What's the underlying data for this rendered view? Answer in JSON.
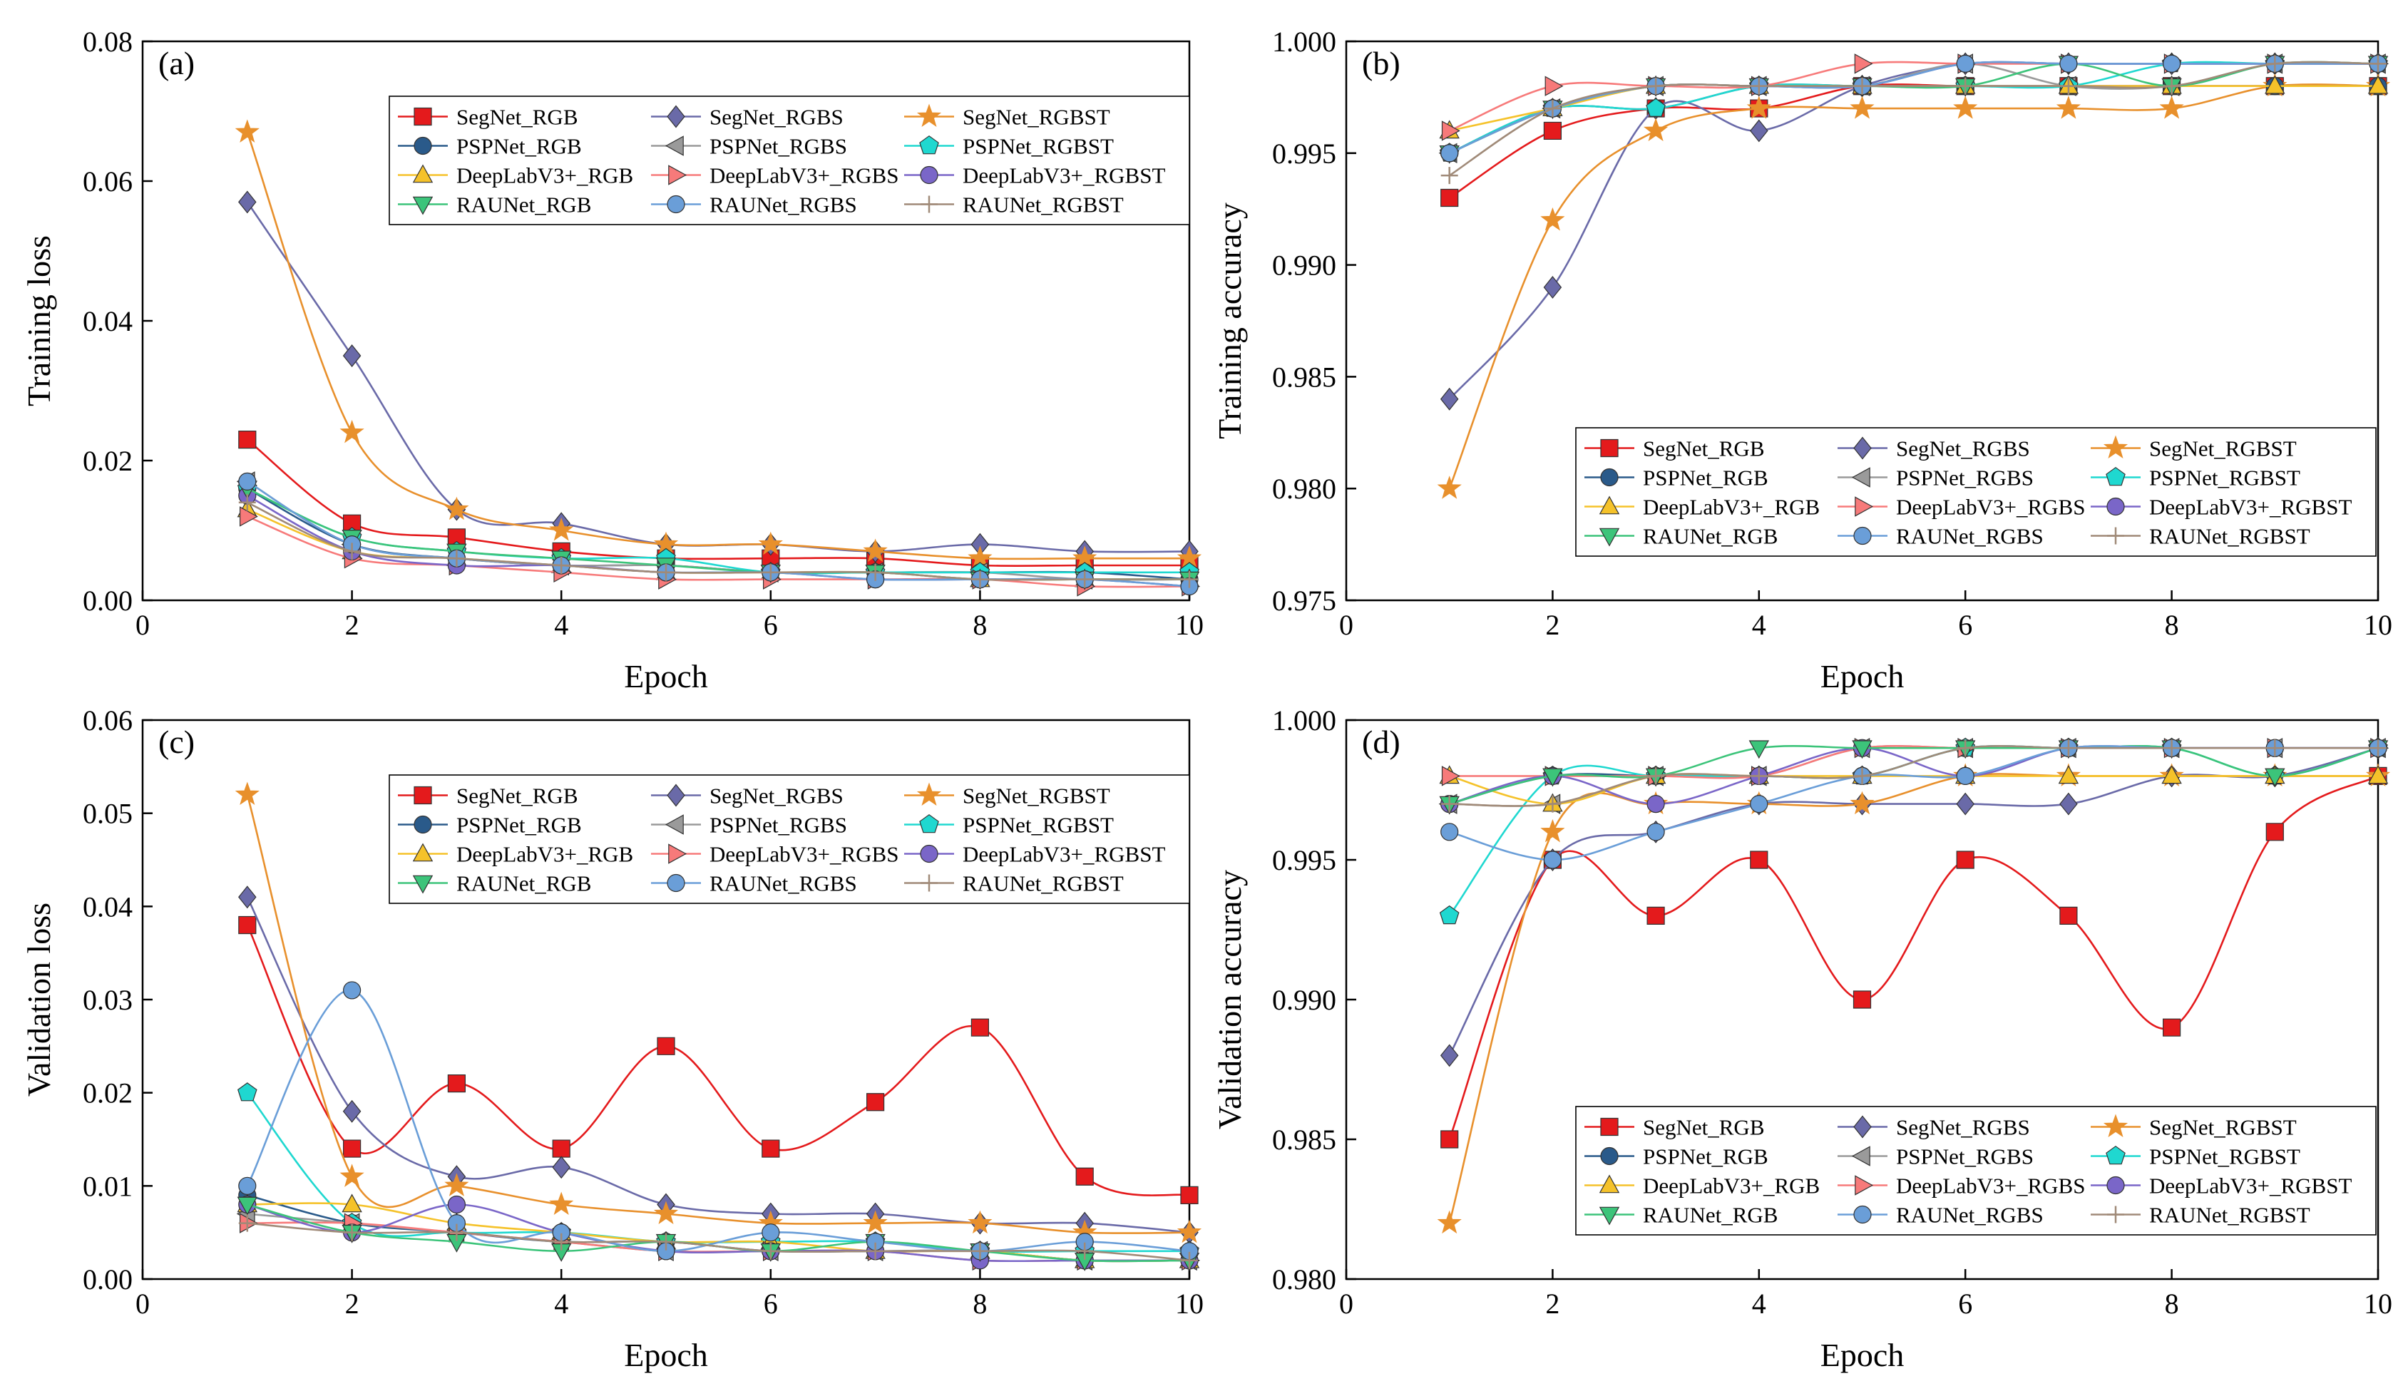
{
  "series_meta": [
    {
      "name": "SegNet_RGB",
      "color": "#e41a1c",
      "marker": "square"
    },
    {
      "name": "SegNet_RGBS",
      "color": "#6a6aa8",
      "marker": "diamond"
    },
    {
      "name": "SegNet_RGBST",
      "color": "#e8902c",
      "marker": "star"
    },
    {
      "name": "PSPNet_RGB",
      "color": "#2a5a8a",
      "marker": "circle"
    },
    {
      "name": "PSPNet_RGBS",
      "color": "#9a9a9a",
      "marker": "triangle-left"
    },
    {
      "name": "PSPNet_RGBST",
      "color": "#1fd8d0",
      "marker": "pentagon"
    },
    {
      "name": "DeepLabV3+_RGB",
      "color": "#f5c22a",
      "marker": "triangle-up"
    },
    {
      "name": "DeepLabV3+_RGBS",
      "color": "#f77a7a",
      "marker": "triangle-right"
    },
    {
      "name": "DeepLabV3+_RGBST",
      "color": "#7a66c8",
      "marker": "circle"
    },
    {
      "name": "RAUNet_RGB",
      "color": "#3cc47a",
      "marker": "triangle-down"
    },
    {
      "name": "RAUNet_RGBS",
      "color": "#6a9ed8",
      "marker": "circle"
    },
    {
      "name": "RAUNet_RGBST",
      "color": "#a08a78",
      "marker": "plus"
    }
  ],
  "chart_data": [
    {
      "type": "line",
      "panel_label": "(a)",
      "xlabel": "Epoch",
      "ylabel": "Training loss",
      "xlim": [
        0,
        10
      ],
      "ylim": [
        0,
        0.08
      ],
      "x_ticks": [
        "0",
        "2",
        "4",
        "6",
        "8",
        "10"
      ],
      "y_ticks": [
        "0.00",
        "0.02",
        "0.04",
        "0.06",
        "0.08"
      ],
      "legend_position": "top-right",
      "x": [
        1,
        2,
        3,
        4,
        5,
        6,
        7,
        8,
        9,
        10
      ],
      "series": [
        {
          "name": "SegNet_RGB",
          "values": [
            0.023,
            0.011,
            0.009,
            0.007,
            0.006,
            0.006,
            0.006,
            0.005,
            0.005,
            0.005
          ]
        },
        {
          "name": "SegNet_RGBS",
          "values": [
            0.057,
            0.035,
            0.013,
            0.011,
            0.008,
            0.008,
            0.007,
            0.008,
            0.007,
            0.007
          ]
        },
        {
          "name": "SegNet_RGBST",
          "values": [
            0.067,
            0.024,
            0.013,
            0.01,
            0.008,
            0.008,
            0.007,
            0.006,
            0.006,
            0.006
          ]
        },
        {
          "name": "PSPNet_RGB",
          "values": [
            0.016,
            0.008,
            0.006,
            0.005,
            0.005,
            0.004,
            0.004,
            0.004,
            0.004,
            0.003
          ]
        },
        {
          "name": "PSPNet_RGBS",
          "values": [
            0.017,
            0.008,
            0.006,
            0.005,
            0.005,
            0.004,
            0.004,
            0.004,
            0.003,
            0.003
          ]
        },
        {
          "name": "PSPNet_RGBST",
          "values": [
            0.016,
            0.009,
            0.007,
            0.006,
            0.006,
            0.004,
            0.004,
            0.004,
            0.004,
            0.004
          ]
        },
        {
          "name": "DeepLabV3+_RGB",
          "values": [
            0.013,
            0.007,
            0.006,
            0.005,
            0.004,
            0.004,
            0.004,
            0.003,
            0.003,
            0.003
          ]
        },
        {
          "name": "DeepLabV3+_RGBS",
          "values": [
            0.012,
            0.006,
            0.005,
            0.004,
            0.003,
            0.003,
            0.003,
            0.003,
            0.002,
            0.002
          ]
        },
        {
          "name": "DeepLabV3+_RGBST",
          "values": [
            0.015,
            0.007,
            0.005,
            0.005,
            0.004,
            0.004,
            0.003,
            0.003,
            0.003,
            0.002
          ]
        },
        {
          "name": "RAUNet_RGB",
          "values": [
            0.016,
            0.009,
            0.007,
            0.006,
            0.005,
            0.004,
            0.004,
            0.003,
            0.003,
            0.003
          ]
        },
        {
          "name": "RAUNet_RGBS",
          "values": [
            0.017,
            0.008,
            0.006,
            0.005,
            0.004,
            0.004,
            0.003,
            0.003,
            0.003,
            0.002
          ]
        },
        {
          "name": "RAUNet_RGBST",
          "values": [
            0.014,
            0.007,
            0.006,
            0.005,
            0.004,
            0.004,
            0.004,
            0.003,
            0.003,
            0.003
          ]
        }
      ]
    },
    {
      "type": "line",
      "panel_label": "(b)",
      "xlabel": "Epoch",
      "ylabel": "Training accuracy",
      "xlim": [
        0,
        10
      ],
      "ylim": [
        0.975,
        1.0
      ],
      "x_ticks": [
        "0",
        "2",
        "4",
        "6",
        "8",
        "10"
      ],
      "y_ticks": [
        "0.975",
        "0.980",
        "0.985",
        "0.990",
        "0.995",
        "1.000"
      ],
      "legend_position": "bottom-right",
      "x": [
        1,
        2,
        3,
        4,
        5,
        6,
        7,
        8,
        9,
        10
      ],
      "series": [
        {
          "name": "SegNet_RGB",
          "values": [
            0.993,
            0.996,
            0.997,
            0.997,
            0.998,
            0.998,
            0.998,
            0.998,
            0.998,
            0.998
          ]
        },
        {
          "name": "SegNet_RGBS",
          "values": [
            0.984,
            0.989,
            0.997,
            0.996,
            0.998,
            0.999,
            0.999,
            0.999,
            0.999,
            0.999
          ]
        },
        {
          "name": "SegNet_RGBST",
          "values": [
            0.98,
            0.992,
            0.996,
            0.997,
            0.997,
            0.997,
            0.997,
            0.997,
            0.998,
            0.998
          ]
        },
        {
          "name": "PSPNet_RGB",
          "values": [
            0.995,
            0.997,
            0.997,
            0.998,
            0.998,
            0.998,
            0.998,
            0.998,
            0.998,
            0.998
          ]
        },
        {
          "name": "PSPNet_RGBS",
          "values": [
            0.995,
            0.997,
            0.998,
            0.998,
            0.998,
            0.999,
            0.998,
            0.998,
            0.999,
            0.999
          ]
        },
        {
          "name": "PSPNet_RGBST",
          "values": [
            0.995,
            0.997,
            0.997,
            0.998,
            0.998,
            0.998,
            0.998,
            0.999,
            0.999,
            0.999
          ]
        },
        {
          "name": "DeepLabV3+_RGB",
          "values": [
            0.996,
            0.997,
            0.998,
            0.998,
            0.998,
            0.998,
            0.998,
            0.998,
            0.998,
            0.998
          ]
        },
        {
          "name": "DeepLabV3+_RGBS",
          "values": [
            0.996,
            0.998,
            0.998,
            0.998,
            0.999,
            0.999,
            0.999,
            0.999,
            0.999,
            0.999
          ]
        },
        {
          "name": "DeepLabV3+_RGBST",
          "values": [
            0.995,
            0.997,
            0.998,
            0.998,
            0.998,
            0.999,
            0.999,
            0.999,
            0.999,
            0.999
          ]
        },
        {
          "name": "RAUNet_RGB",
          "values": [
            0.995,
            0.997,
            0.998,
            0.998,
            0.998,
            0.998,
            0.999,
            0.998,
            0.999,
            0.999
          ]
        },
        {
          "name": "RAUNet_RGBS",
          "values": [
            0.995,
            0.997,
            0.998,
            0.998,
            0.998,
            0.999,
            0.999,
            0.999,
            0.999,
            0.999
          ]
        },
        {
          "name": "RAUNet_RGBST",
          "values": [
            0.994,
            0.997,
            0.998,
            0.998,
            0.998,
            0.998,
            0.998,
            0.998,
            0.999,
            0.999
          ]
        }
      ]
    },
    {
      "type": "line",
      "panel_label": "(c)",
      "xlabel": "Epoch",
      "ylabel": "Validation loss",
      "xlim": [
        0,
        10
      ],
      "ylim": [
        0,
        0.06
      ],
      "x_ticks": [
        "0",
        "2",
        "4",
        "6",
        "8",
        "10"
      ],
      "y_ticks": [
        "0.00",
        "0.01",
        "0.02",
        "0.03",
        "0.04",
        "0.05",
        "0.06"
      ],
      "legend_position": "top-right",
      "x": [
        1,
        2,
        3,
        4,
        5,
        6,
        7,
        8,
        9,
        10
      ],
      "series": [
        {
          "name": "SegNet_RGB",
          "values": [
            0.038,
            0.014,
            0.021,
            0.014,
            0.025,
            0.014,
            0.019,
            0.027,
            0.011,
            0.009
          ]
        },
        {
          "name": "SegNet_RGBS",
          "values": [
            0.041,
            0.018,
            0.011,
            0.012,
            0.008,
            0.007,
            0.007,
            0.006,
            0.006,
            0.005
          ]
        },
        {
          "name": "SegNet_RGBST",
          "values": [
            0.052,
            0.011,
            0.01,
            0.008,
            0.007,
            0.006,
            0.006,
            0.006,
            0.005,
            0.005
          ]
        },
        {
          "name": "PSPNet_RGB",
          "values": [
            0.009,
            0.006,
            0.005,
            0.004,
            0.004,
            0.003,
            0.003,
            0.003,
            0.002,
            0.002
          ]
        },
        {
          "name": "PSPNet_RGBS",
          "values": [
            0.007,
            0.006,
            0.005,
            0.004,
            0.003,
            0.003,
            0.003,
            0.003,
            0.002,
            0.002
          ]
        },
        {
          "name": "PSPNet_RGBST",
          "values": [
            0.02,
            0.006,
            0.005,
            0.005,
            0.004,
            0.004,
            0.004,
            0.003,
            0.003,
            0.003
          ]
        },
        {
          "name": "DeepLabV3+_RGB",
          "values": [
            0.008,
            0.008,
            0.006,
            0.005,
            0.004,
            0.004,
            0.003,
            0.003,
            0.002,
            0.002
          ]
        },
        {
          "name": "DeepLabV3+_RGBS",
          "values": [
            0.006,
            0.006,
            0.005,
            0.004,
            0.003,
            0.003,
            0.003,
            0.002,
            0.002,
            0.002
          ]
        },
        {
          "name": "DeepLabV3+_RGBST",
          "values": [
            0.008,
            0.005,
            0.008,
            0.005,
            0.003,
            0.003,
            0.003,
            0.002,
            0.002,
            0.002
          ]
        },
        {
          "name": "RAUNet_RGB",
          "values": [
            0.008,
            0.005,
            0.004,
            0.003,
            0.004,
            0.003,
            0.004,
            0.003,
            0.002,
            0.002
          ]
        },
        {
          "name": "RAUNet_RGBS",
          "values": [
            0.01,
            0.031,
            0.006,
            0.005,
            0.003,
            0.005,
            0.004,
            0.003,
            0.004,
            0.003
          ]
        },
        {
          "name": "RAUNet_RGBST",
          "values": [
            0.006,
            0.005,
            0.005,
            0.004,
            0.004,
            0.003,
            0.003,
            0.003,
            0.003,
            0.002
          ]
        }
      ]
    },
    {
      "type": "line",
      "panel_label": "(d)",
      "xlabel": "Epoch",
      "ylabel": "Validation accuracy",
      "xlim": [
        0,
        10
      ],
      "ylim": [
        0.98,
        1.0
      ],
      "x_ticks": [
        "0",
        "2",
        "4",
        "6",
        "8",
        "10"
      ],
      "y_ticks": [
        "0.980",
        "0.985",
        "0.990",
        "0.995",
        "1.000"
      ],
      "legend_position": "bottom-right",
      "x": [
        1,
        2,
        3,
        4,
        5,
        6,
        7,
        8,
        9,
        10
      ],
      "series": [
        {
          "name": "SegNet_RGB",
          "values": [
            0.985,
            0.995,
            0.993,
            0.995,
            0.99,
            0.995,
            0.993,
            0.989,
            0.996,
            0.998
          ]
        },
        {
          "name": "SegNet_RGBS",
          "values": [
            0.988,
            0.995,
            0.996,
            0.997,
            0.997,
            0.997,
            0.997,
            0.998,
            0.998,
            0.999
          ]
        },
        {
          "name": "SegNet_RGBST",
          "values": [
            0.982,
            0.996,
            0.997,
            0.997,
            0.997,
            0.998,
            0.998,
            0.998,
            0.998,
            0.998
          ]
        },
        {
          "name": "PSPNet_RGB",
          "values": [
            0.997,
            0.998,
            0.998,
            0.998,
            0.998,
            0.999,
            0.999,
            0.999,
            0.999,
            0.999
          ]
        },
        {
          "name": "PSPNet_RGBS",
          "values": [
            0.997,
            0.997,
            0.998,
            0.998,
            0.999,
            0.999,
            0.999,
            0.999,
            0.999,
            0.999
          ]
        },
        {
          "name": "PSPNet_RGBST",
          "values": [
            0.993,
            0.998,
            0.998,
            0.998,
            0.998,
            0.999,
            0.999,
            0.999,
            0.998,
            0.999
          ]
        },
        {
          "name": "DeepLabV3+_RGB",
          "values": [
            0.998,
            0.997,
            0.998,
            0.998,
            0.998,
            0.998,
            0.998,
            0.998,
            0.998,
            0.998
          ]
        },
        {
          "name": "DeepLabV3+_RGBS",
          "values": [
            0.998,
            0.998,
            0.998,
            0.998,
            0.999,
            0.999,
            0.999,
            0.999,
            0.999,
            0.999
          ]
        },
        {
          "name": "DeepLabV3+_RGBST",
          "values": [
            0.997,
            0.998,
            0.997,
            0.998,
            0.999,
            0.998,
            0.999,
            0.999,
            0.999,
            0.999
          ]
        },
        {
          "name": "RAUNet_RGB",
          "values": [
            0.997,
            0.998,
            0.998,
            0.999,
            0.999,
            0.999,
            0.999,
            0.999,
            0.998,
            0.999
          ]
        },
        {
          "name": "RAUNet_RGBS",
          "values": [
            0.996,
            0.995,
            0.996,
            0.997,
            0.998,
            0.998,
            0.999,
            0.999,
            0.999,
            0.999
          ]
        },
        {
          "name": "RAUNet_RGBST",
          "values": [
            0.997,
            0.997,
            0.998,
            0.998,
            0.998,
            0.999,
            0.999,
            0.999,
            0.999,
            0.999
          ]
        }
      ]
    }
  ]
}
